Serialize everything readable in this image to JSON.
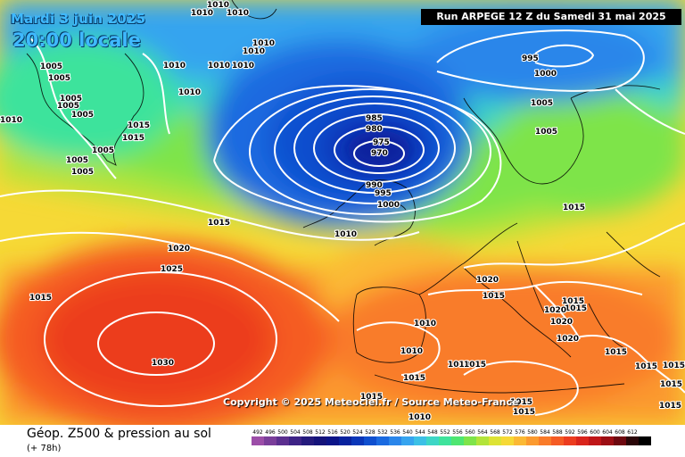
{
  "header": {
    "date_label": "Mardi 3 juin 2025",
    "time_label": "20:00 locale",
    "run_label": "Run ARPEGE 12 Z du Samedi 31 mai 2025"
  },
  "footer": {
    "title": "Géop. Z500 & pression au sol",
    "lead_time": "(+ 78h)",
    "copyright": "Copyright © 2025 Meteociel.fr / Source Meteo-France"
  },
  "legend_scale": [
    {
      "label": "492",
      "color": "#9c4ea8"
    },
    {
      "label": "496",
      "color": "#7a3e9a"
    },
    {
      "label": "500",
      "color": "#5b2f8f"
    },
    {
      "label": "504",
      "color": "#3d2386"
    },
    {
      "label": "508",
      "color": "#241a7c"
    },
    {
      "label": "512",
      "color": "#14137a"
    },
    {
      "label": "516",
      "color": "#0b1488"
    },
    {
      "label": "520",
      "color": "#08229e"
    },
    {
      "label": "524",
      "color": "#0a36b8"
    },
    {
      "label": "528",
      "color": "#0f4fcf"
    },
    {
      "label": "532",
      "color": "#1a6ae0"
    },
    {
      "label": "536",
      "color": "#2a86ea"
    },
    {
      "label": "540",
      "color": "#36a4ef"
    },
    {
      "label": "544",
      "color": "#3cc0e6"
    },
    {
      "label": "548",
      "color": "#3dd6c6"
    },
    {
      "label": "552",
      "color": "#3ee39c"
    },
    {
      "label": "556",
      "color": "#4ee671"
    },
    {
      "label": "560",
      "color": "#7ee44a"
    },
    {
      "label": "564",
      "color": "#b2e43a"
    },
    {
      "label": "568",
      "color": "#dde334"
    },
    {
      "label": "572",
      "color": "#f6d936"
    },
    {
      "label": "576",
      "color": "#fbb934"
    },
    {
      "label": "580",
      "color": "#fb9a2f"
    },
    {
      "label": "584",
      "color": "#f97b29"
    },
    {
      "label": "588",
      "color": "#f55b24"
    },
    {
      "label": "592",
      "color": "#ec3c1f"
    },
    {
      "label": "596",
      "color": "#d9241c"
    },
    {
      "label": "600",
      "color": "#bf1618"
    },
    {
      "label": "604",
      "color": "#9c0e14"
    },
    {
      "label": "608",
      "color": "#6e0810"
    },
    {
      "label": "612",
      "color": "#2a0608"
    },
    {
      "label": "",
      "color": "#000000"
    }
  ],
  "isobar_labels": [
    "1010",
    "1010",
    "1010",
    "1010",
    "1010",
    "1010",
    "1010",
    "1010",
    "1010",
    "1010",
    "1010",
    "1005",
    "1005",
    "1005",
    "1005",
    "1005",
    "1005",
    "1005",
    "1005",
    "1005",
    "1005",
    "1015",
    "1015",
    "1015",
    "1015",
    "1015",
    "1015",
    "1015",
    "1015",
    "1015",
    "1015",
    "1015",
    "1015",
    "1015",
    "1015",
    "1015",
    "1015",
    "1015",
    "995",
    "1000",
    "1000",
    "990",
    "995",
    "985",
    "980",
    "975",
    "970",
    "1020",
    "1020",
    "1020",
    "1020",
    "1020",
    "1025",
    "1030",
    "1010",
    "1015",
    "1010",
    "1010",
    "1010"
  ]
}
